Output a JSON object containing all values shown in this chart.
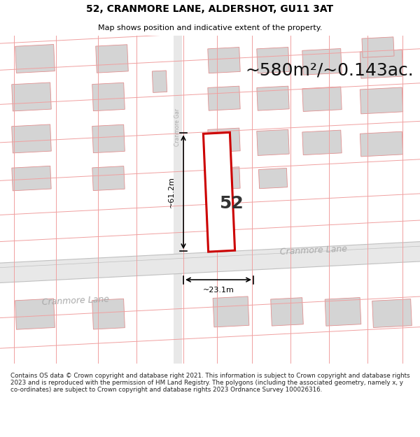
{
  "title_line1": "52, CRANMORE LANE, ALDERSHOT, GU11 3AT",
  "title_line2": "Map shows position and indicative extent of the property.",
  "area_text": "~580m²/~0.143ac.",
  "width_label": "~23.1m",
  "height_label": "~61.2m",
  "number_label": "52",
  "street_label_cranmore_lane_1": "Cranmore Lane",
  "street_label_cranmore_lane_2": "Cranmore Lane",
  "street_label_vertical": "Cranmore Gar",
  "footer_text": "Contains OS data © Crown copyright and database right 2021. This information is subject to Crown copyright and database rights 2023 and is reproduced with the permission of HM Land Registry. The polygons (including the associated geometry, namely x, y co-ordinates) are subject to Crown copyright and database rights 2023 Ordnance Survey 100026316.",
  "map_bg": "#f8f8f8",
  "road_fill": "#e4e4e4",
  "bld_fill": "#d4d4d4",
  "bld_edge": "#e09090",
  "red_prop": "#cc0000",
  "pink_grid": "#f0a0a0",
  "black": "#000000",
  "white": "#ffffff",
  "street_label_color": "#aaaaaa",
  "title_fontsize": 10,
  "subtitle_fontsize": 8,
  "footer_fontsize": 6.3,
  "area_fontsize": 18,
  "number_fontsize": 18,
  "measure_fontsize": 8,
  "street_fontsize": 9
}
